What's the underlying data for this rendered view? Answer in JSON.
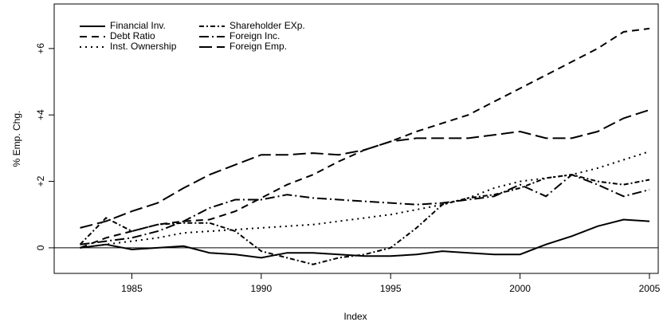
{
  "chart_data": {
    "type": "line",
    "x_label": "Index",
    "y_label": "% Emp. Chg.",
    "x": [
      1983,
      1984,
      1985,
      1986,
      1987,
      1988,
      1989,
      1990,
      1991,
      1992,
      1993,
      1994,
      1995,
      1996,
      1997,
      1998,
      1999,
      2000,
      2001,
      2002,
      2003,
      2004,
      2005
    ],
    "series": [
      {
        "name": "Financial Inv.",
        "color": "#000000",
        "dash": "",
        "values": [
          0,
          0.1,
          -0.05,
          0,
          0.05,
          -0.15,
          -0.2,
          -0.3,
          -0.15,
          -0.15,
          -0.2,
          -0.25,
          -0.25,
          -0.2,
          -0.1,
          -0.15,
          -0.2,
          -0.2,
          0.1,
          0.35,
          0.65,
          0.85,
          0.8
        ]
      },
      {
        "name": "Debt Ratio",
        "color": "#000000",
        "dash": "9 6",
        "values": [
          0,
          0.3,
          0.5,
          0.7,
          0.8,
          0.85,
          1.1,
          1.5,
          1.9,
          2.2,
          2.6,
          2.95,
          3.2,
          3.5,
          3.75,
          4.0,
          4.4,
          4.8,
          5.2,
          5.6,
          6.0,
          6.5,
          6.6
        ]
      },
      {
        "name": "Inst. Ownership",
        "color": "#000000",
        "dash": "2 5",
        "values": [
          0,
          0.1,
          0.2,
          0.3,
          0.45,
          0.5,
          0.55,
          0.6,
          0.65,
          0.7,
          0.8,
          0.9,
          1.0,
          1.15,
          1.3,
          1.5,
          1.8,
          2.0,
          2.1,
          2.2,
          2.4,
          2.65,
          2.9
        ]
      },
      {
        "name": "Shareholder EXp.",
        "color": "#000000",
        "dash": "6 3 2 3",
        "values": [
          0.1,
          0.9,
          0.5,
          0.7,
          0.75,
          0.75,
          0.5,
          -0.1,
          -0.3,
          -0.5,
          -0.3,
          -0.2,
          0,
          0.6,
          1.3,
          1.5,
          1.6,
          1.8,
          2.1,
          2.2,
          2.0,
          1.9,
          2.05
        ]
      },
      {
        "name": "Foreign Inc.",
        "color": "#000000",
        "dash": "12 4 2 4",
        "values": [
          0.1,
          0.2,
          0.3,
          0.5,
          0.8,
          1.2,
          1.45,
          1.45,
          1.6,
          1.5,
          1.45,
          1.4,
          1.35,
          1.3,
          1.35,
          1.45,
          1.55,
          1.9,
          1.55,
          2.2,
          1.9,
          1.55,
          1.75
        ]
      },
      {
        "name": "Foreign Emp.",
        "color": "#000000",
        "dash": "16 6",
        "values": [
          0.6,
          0.8,
          1.1,
          1.35,
          1.8,
          2.2,
          2.5,
          2.8,
          2.8,
          2.85,
          2.8,
          2.95,
          3.2,
          3.3,
          3.3,
          3.3,
          3.4,
          3.5,
          3.3,
          3.3,
          3.5,
          3.9,
          4.15
        ]
      }
    ],
    "xlim": [
      1982,
      2005.34
    ],
    "xticks": [
      1985,
      1990,
      1995,
      2000,
      2005
    ],
    "ylim": [
      -0.77,
      7.34
    ],
    "yticks": [
      0,
      {
        "value": 2,
        "label": "+2"
      },
      {
        "value": 4,
        "label": "+4"
      },
      {
        "value": 6,
        "label": "+6"
      }
    ],
    "hline": 0,
    "legend": "top-left"
  }
}
